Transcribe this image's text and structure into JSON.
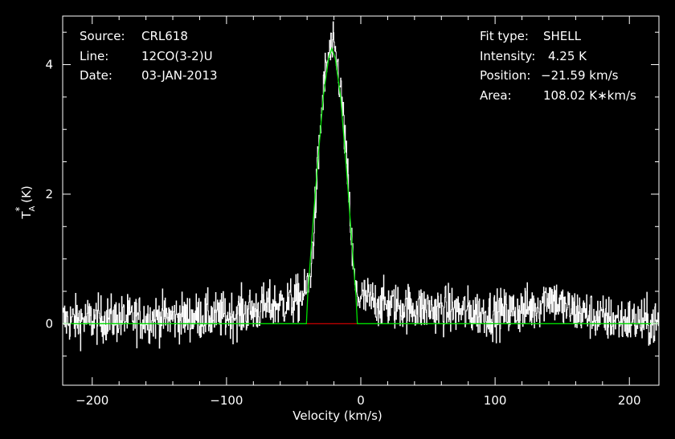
{
  "header": {
    "source_label": "Source:",
    "source_value": "CRL618",
    "line_label": "Line:",
    "line_value": "12CO(3-2)U",
    "date_label": "Date:",
    "date_value": "03-JAN-2013",
    "fit_type_label": "Fit type:",
    "fit_type_value": "SHELL",
    "intensity_label": "Intensity:",
    "intensity_value": "4.25 K",
    "position_label": "Position:",
    "position_value": "−21.59 km/s",
    "area_label": "Area:",
    "area_value": "108.02 K∗km/s"
  },
  "chart_data": {
    "type": "line",
    "xlabel": "Velocity (km/s)",
    "ylabel": "T*A (K)",
    "xlim": [
      -222,
      222
    ],
    "ylim": [
      -0.95,
      4.75
    ],
    "x_ticks": [
      -200,
      -100,
      0,
      100,
      200
    ],
    "x_tick_labels": [
      "−200",
      "−100",
      "0",
      "100",
      "200"
    ],
    "y_ticks": [
      0,
      2,
      4
    ],
    "y_tick_labels": [
      "0",
      "2",
      "4"
    ],
    "grid": false,
    "colors": {
      "background": "#000000",
      "axes": "#ffffff",
      "spectrum": "#ffffff",
      "fit": "#00e000",
      "baseline": "#e00000"
    },
    "series": [
      {
        "role": "spectrum",
        "noise_rms": 0.18,
        "x": [
          -222,
          -100,
          -50,
          -42,
          -38,
          -36,
          -34,
          -32,
          -30,
          -28,
          -26,
          -24,
          -22,
          -20,
          -18,
          -16,
          -14,
          -12,
          -10,
          -8,
          -6,
          -4,
          -3,
          0,
          20,
          60,
          100,
          130,
          140,
          150,
          180,
          222
        ],
        "values": [
          0.05,
          0.12,
          0.35,
          0.45,
          0.7,
          1.2,
          1.8,
          2.5,
          3.1,
          3.6,
          3.95,
          4.15,
          4.25,
          4.2,
          4.05,
          3.75,
          3.35,
          2.85,
          2.25,
          1.6,
          0.9,
          0.5,
          0.45,
          0.4,
          0.28,
          0.22,
          0.15,
          0.25,
          0.45,
          0.25,
          0.08,
          0.0
        ]
      },
      {
        "role": "fit",
        "x": [
          -222,
          -40.5,
          -39.5,
          -34,
          -28,
          -24,
          -21.6,
          -19,
          -15,
          -10,
          -5,
          -3.6,
          -2.6,
          222
        ],
        "values": [
          0,
          0,
          0.45,
          2.0,
          3.5,
          4.1,
          4.25,
          4.1,
          3.5,
          2.2,
          0.8,
          0.42,
          0,
          0
        ]
      },
      {
        "role": "baseline",
        "x": [
          -40.5,
          -2.6
        ],
        "values": [
          0,
          0
        ]
      }
    ]
  }
}
